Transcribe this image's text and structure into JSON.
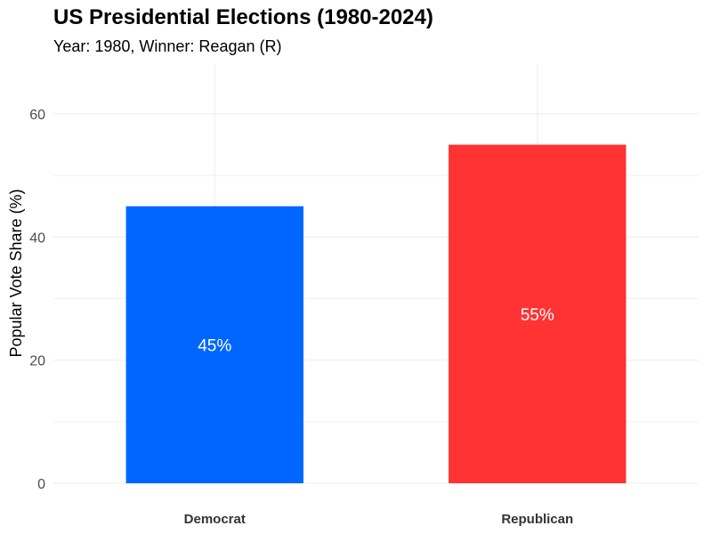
{
  "title": "US Presidential Elections (1980-2024)",
  "subtitle": "Year: 1980, Winner: Reagan (R)",
  "chart_data": {
    "type": "bar",
    "categories": [
      "Democrat",
      "Republican"
    ],
    "values": [
      45,
      55
    ],
    "value_labels": [
      "45%",
      "55%"
    ],
    "colors": [
      "#0066ff",
      "#ff3333"
    ],
    "ylabel": "Popular Vote Share (%)",
    "xlabel": "",
    "ylim": [
      0,
      67
    ],
    "yticks": [
      0,
      20,
      40,
      60
    ],
    "ytick_labels": [
      "0",
      "20",
      "40",
      "60"
    ],
    "grid": true,
    "legend": "none"
  }
}
